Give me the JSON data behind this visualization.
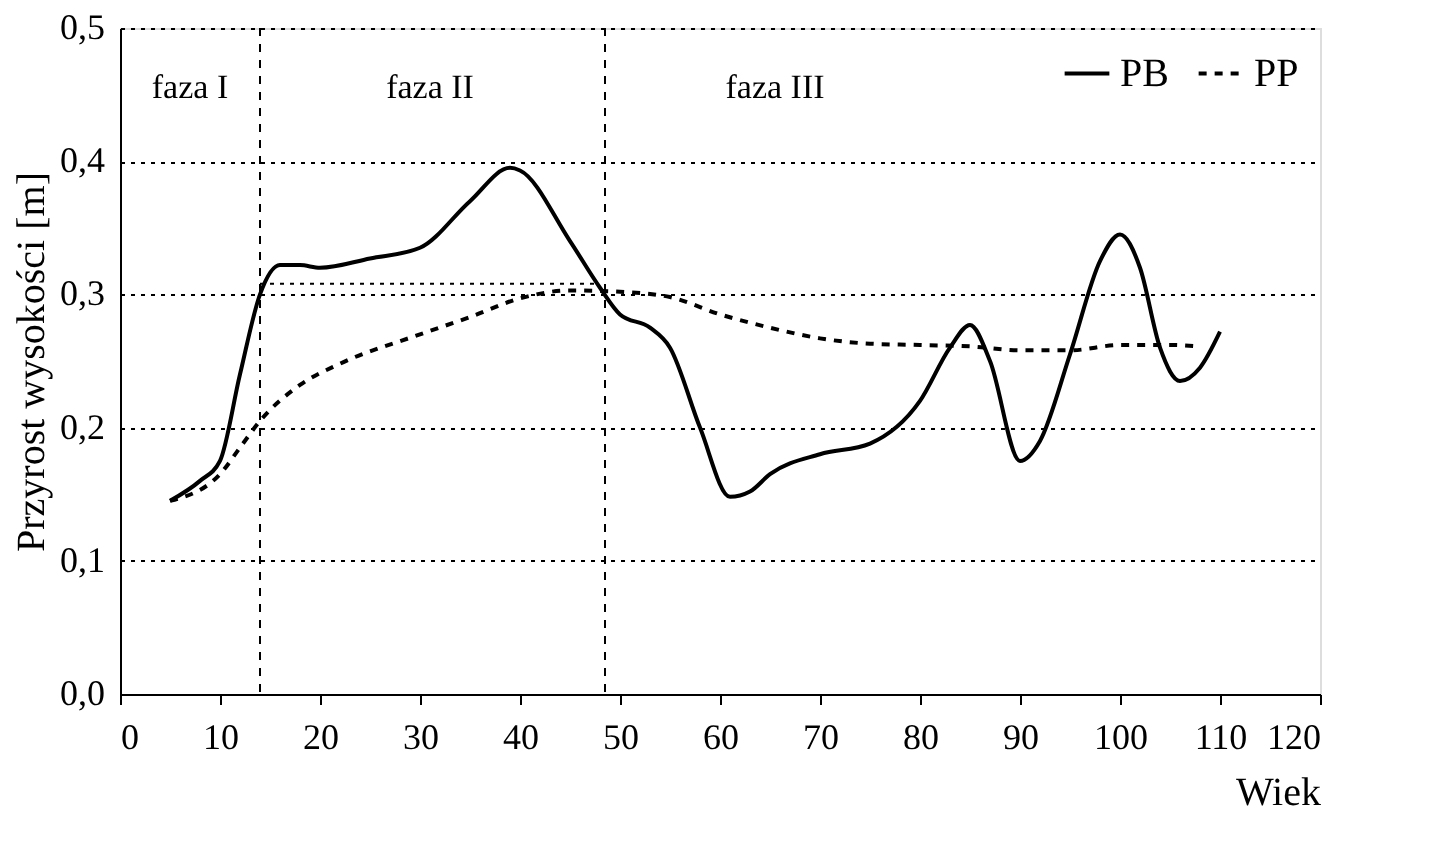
{
  "chart_data": {
    "type": "line",
    "xlabel": "Wiek",
    "ylabel": "Przyrost wysokości [m]",
    "xlim": [
      0,
      120
    ],
    "xticks": [
      0,
      10,
      20,
      30,
      40,
      50,
      60,
      70,
      80,
      90,
      100,
      110,
      120
    ],
    "ylim": [
      0,
      0.5
    ],
    "yticks": [
      {
        "value": 0,
        "label": "0,0"
      },
      {
        "value": 0.1,
        "label": "0,1"
      },
      {
        "value": 0.2,
        "label": "0,2"
      },
      {
        "value": 0.3,
        "label": "0,3"
      },
      {
        "value": 0.4,
        "label": "0,4"
      },
      {
        "value": 0.5,
        "label": "0,5"
      }
    ],
    "grid": "y",
    "legend": "top right",
    "marker": "none",
    "series": [
      {
        "name": "PB",
        "color": "#000000",
        "line_style": "solid",
        "x": [
          5,
          8,
          10,
          12,
          14,
          16,
          18,
          20,
          25,
          30,
          35,
          39,
          40,
          45,
          48,
          50,
          53,
          55,
          58,
          61,
          63,
          65,
          70,
          75,
          80,
          83,
          85,
          87,
          90,
          92,
          95,
          98,
          100,
          102,
          104,
          106,
          108,
          110
        ],
        "values": [
          0.145,
          0.16,
          0.175,
          0.24,
          0.3,
          0.322,
          0.322,
          0.32,
          0.327,
          0.335,
          0.37,
          0.395,
          0.393,
          0.34,
          0.305,
          0.285,
          0.275,
          0.26,
          0.2,
          0.148,
          0.152,
          0.165,
          0.18,
          0.188,
          0.22,
          0.26,
          0.277,
          0.25,
          0.175,
          0.19,
          0.255,
          0.325,
          0.345,
          0.32,
          0.26,
          0.235,
          0.245,
          0.272
        ]
      },
      {
        "name": "PP",
        "color": "#000000",
        "line_style": "dashed",
        "x": [
          5,
          10,
          12,
          14,
          18,
          22,
          30,
          35,
          40,
          45,
          50,
          55,
          60,
          65,
          70,
          75,
          80,
          85,
          90,
          95,
          100,
          105,
          108
        ],
        "values": [
          0.145,
          0.165,
          0.185,
          0.205,
          0.232,
          0.248,
          0.27,
          0.283,
          0.297,
          0.303,
          0.302,
          0.298,
          0.285,
          0.275,
          0.267,
          0.263,
          0.262,
          0.261,
          0.258,
          0.258,
          0.262,
          0.262,
          0.261
        ]
      },
      {
        "color": "#000000",
        "line_style": "dotted",
        "x": [
          14,
          48
        ],
        "values": [
          0.308,
          0.308
        ]
      }
    ],
    "ref_lines": [
      {
        "axis": "x",
        "value": 14,
        "line_style": "dashed"
      },
      {
        "axis": "x",
        "value": 48.5,
        "line_style": "dashed"
      }
    ],
    "annotations": [
      "faza I",
      "faza II",
      "faza III"
    ]
  }
}
